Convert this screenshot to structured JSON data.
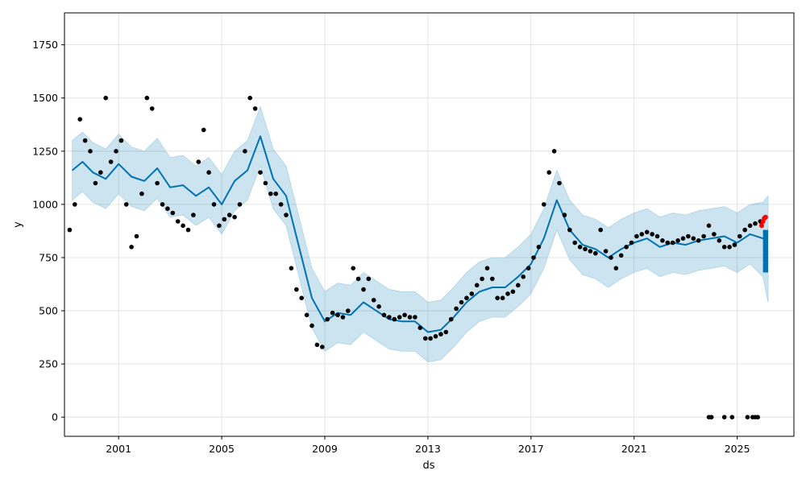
{
  "chart_data": {
    "type": "line",
    "title": "",
    "xlabel": "ds",
    "ylabel": "y",
    "xlim": [
      1998.9,
      2027.2
    ],
    "ylim": [
      -90,
      1900
    ],
    "grid": true,
    "legend": "none",
    "x_ticks": [
      2001,
      2005,
      2009,
      2013,
      2017,
      2021,
      2025
    ],
    "x_tick_labels": [
      "2001",
      "2005",
      "2009",
      "2013",
      "2017",
      "2021",
      "2025"
    ],
    "y_ticks": [
      0,
      250,
      500,
      750,
      1000,
      1250,
      1500,
      1750
    ],
    "y_tick_labels": [
      "0",
      "250",
      "500",
      "750",
      "1000",
      "1250",
      "1500",
      "1750"
    ],
    "colors": {
      "forecast": "#0072B2",
      "interval": "#0072B2",
      "observed": "#000000",
      "highlight": "#ff0000"
    },
    "forecast": {
      "x": [
        1999.2,
        1999.6,
        2000.0,
        2000.5,
        2001.0,
        2001.5,
        2002.0,
        2002.5,
        2003.0,
        2003.5,
        2004.0,
        2004.5,
        2005.0,
        2005.5,
        2006.0,
        2006.5,
        2007.0,
        2007.5,
        2008.0,
        2008.5,
        2009.0,
        2009.5,
        2010.0,
        2010.5,
        2011.0,
        2011.5,
        2012.0,
        2012.5,
        2013.0,
        2013.5,
        2014.0,
        2014.5,
        2015.0,
        2015.5,
        2016.0,
        2016.5,
        2017.0,
        2017.5,
        2018.0,
        2018.5,
        2019.0,
        2019.5,
        2020.0,
        2020.5,
        2021.0,
        2021.5,
        2022.0,
        2022.5,
        2023.0,
        2023.5,
        2024.0,
        2024.5,
        2025.0,
        2025.5,
        2026.0,
        2026.2
      ],
      "yhat": [
        1160,
        1200,
        1150,
        1120,
        1190,
        1130,
        1110,
        1170,
        1080,
        1090,
        1040,
        1080,
        1000,
        1110,
        1160,
        1320,
        1120,
        1040,
        800,
        560,
        450,
        490,
        480,
        540,
        500,
        460,
        450,
        450,
        400,
        410,
        470,
        540,
        590,
        610,
        610,
        660,
        720,
        840,
        1020,
        880,
        810,
        790,
        750,
        790,
        820,
        840,
        800,
        820,
        810,
        830,
        840,
        850,
        820,
        860,
        840,
        850
      ],
      "lower": [
        1020,
        1060,
        1010,
        980,
        1050,
        990,
        970,
        1030,
        940,
        950,
        900,
        940,
        860,
        970,
        1020,
        1180,
        980,
        900,
        660,
        420,
        310,
        350,
        340,
        400,
        360,
        320,
        310,
        310,
        260,
        270,
        330,
        400,
        450,
        470,
        470,
        520,
        580,
        700,
        880,
        740,
        670,
        650,
        610,
        650,
        680,
        700,
        660,
        680,
        670,
        690,
        700,
        710,
        680,
        720,
        660,
        540
      ],
      "upper": [
        1300,
        1340,
        1290,
        1260,
        1330,
        1270,
        1250,
        1310,
        1220,
        1230,
        1180,
        1220,
        1140,
        1250,
        1300,
        1460,
        1260,
        1180,
        940,
        700,
        590,
        630,
        620,
        680,
        640,
        600,
        590,
        590,
        540,
        550,
        610,
        680,
        730,
        750,
        750,
        800,
        860,
        980,
        1160,
        1020,
        950,
        930,
        890,
        930,
        960,
        980,
        940,
        960,
        950,
        970,
        980,
        990,
        960,
        1000,
        1010,
        1040
      ]
    },
    "observed": {
      "x": [
        1999.1,
        1999.3,
        1999.5,
        1999.7,
        1999.9,
        2000.1,
        2000.3,
        2000.5,
        2000.7,
        2000.9,
        2001.1,
        2001.3,
        2001.5,
        2001.7,
        2001.9,
        2002.1,
        2002.3,
        2002.5,
        2002.7,
        2002.9,
        2003.1,
        2003.3,
        2003.5,
        2003.7,
        2003.9,
        2004.1,
        2004.3,
        2004.5,
        2004.7,
        2004.9,
        2005.1,
        2005.3,
        2005.5,
        2005.7,
        2005.9,
        2006.1,
        2006.3,
        2006.5,
        2006.7,
        2006.9,
        2007.1,
        2007.3,
        2007.5,
        2007.7,
        2007.9,
        2008.1,
        2008.3,
        2008.5,
        2008.7,
        2008.9,
        2009.1,
        2009.3,
        2009.5,
        2009.7,
        2009.9,
        2010.1,
        2010.3,
        2010.5,
        2010.7,
        2010.9,
        2011.1,
        2011.3,
        2011.5,
        2011.7,
        2011.9,
        2012.1,
        2012.3,
        2012.5,
        2012.7,
        2012.9,
        2013.1,
        2013.3,
        2013.5,
        2013.7,
        2013.9,
        2014.1,
        2014.3,
        2014.5,
        2014.7,
        2014.9,
        2015.1,
        2015.3,
        2015.5,
        2015.7,
        2015.9,
        2016.1,
        2016.3,
        2016.5,
        2016.7,
        2016.9,
        2017.1,
        2017.3,
        2017.5,
        2017.7,
        2017.9,
        2018.1,
        2018.3,
        2018.5,
        2018.7,
        2018.9,
        2019.1,
        2019.3,
        2019.5,
        2019.7,
        2019.9,
        2020.1,
        2020.3,
        2020.5,
        2020.7,
        2020.9,
        2021.1,
        2021.3,
        2021.5,
        2021.7,
        2021.9,
        2022.1,
        2022.3,
        2022.5,
        2022.7,
        2022.9,
        2023.1,
        2023.3,
        2023.5,
        2023.7,
        2023.9,
        2024.1,
        2024.3,
        2024.5,
        2024.7,
        2024.9,
        2025.1,
        2025.3,
        2025.5,
        2025.7,
        2025.9
      ],
      "y": [
        880,
        1000,
        1400,
        1300,
        1250,
        1100,
        1150,
        1500,
        1200,
        1250,
        1300,
        1000,
        800,
        850,
        1050,
        1500,
        1450,
        1100,
        1000,
        980,
        960,
        920,
        900,
        880,
        950,
        1200,
        1350,
        1150,
        1000,
        900,
        930,
        950,
        940,
        1000,
        1250,
        1500,
        1450,
        1150,
        1100,
        1050,
        1050,
        1000,
        950,
        700,
        600,
        560,
        480,
        430,
        340,
        330,
        460,
        490,
        480,
        470,
        500,
        700,
        650,
        600,
        650,
        550,
        520,
        480,
        470,
        460,
        470,
        480,
        470,
        470,
        420,
        370,
        370,
        380,
        390,
        400,
        460,
        510,
        540,
        560,
        580,
        620,
        650,
        700,
        650,
        560,
        560,
        580,
        590,
        620,
        660,
        700,
        750,
        800,
        1000,
        1150,
        1250,
        1100,
        950,
        880,
        820,
        800,
        790,
        780,
        770,
        880,
        780,
        750,
        700,
        760,
        800,
        820,
        850,
        860,
        870,
        860,
        850,
        830,
        820,
        820,
        830,
        840,
        850,
        840,
        830,
        850,
        900,
        860,
        830,
        800,
        800,
        810,
        850,
        880,
        900,
        910,
        920
      ],
      "zero_x": [
        2023.9,
        2024.0,
        2024.5,
        2024.8,
        2025.4,
        2025.6,
        2025.7,
        2025.8
      ]
    },
    "highlight": {
      "x": [
        2025.95,
        2026.0,
        2026.05,
        2026.1
      ],
      "y": [
        900,
        920,
        935,
        940
      ]
    },
    "future_band_x": [
      2026.0,
      2026.2
    ]
  }
}
